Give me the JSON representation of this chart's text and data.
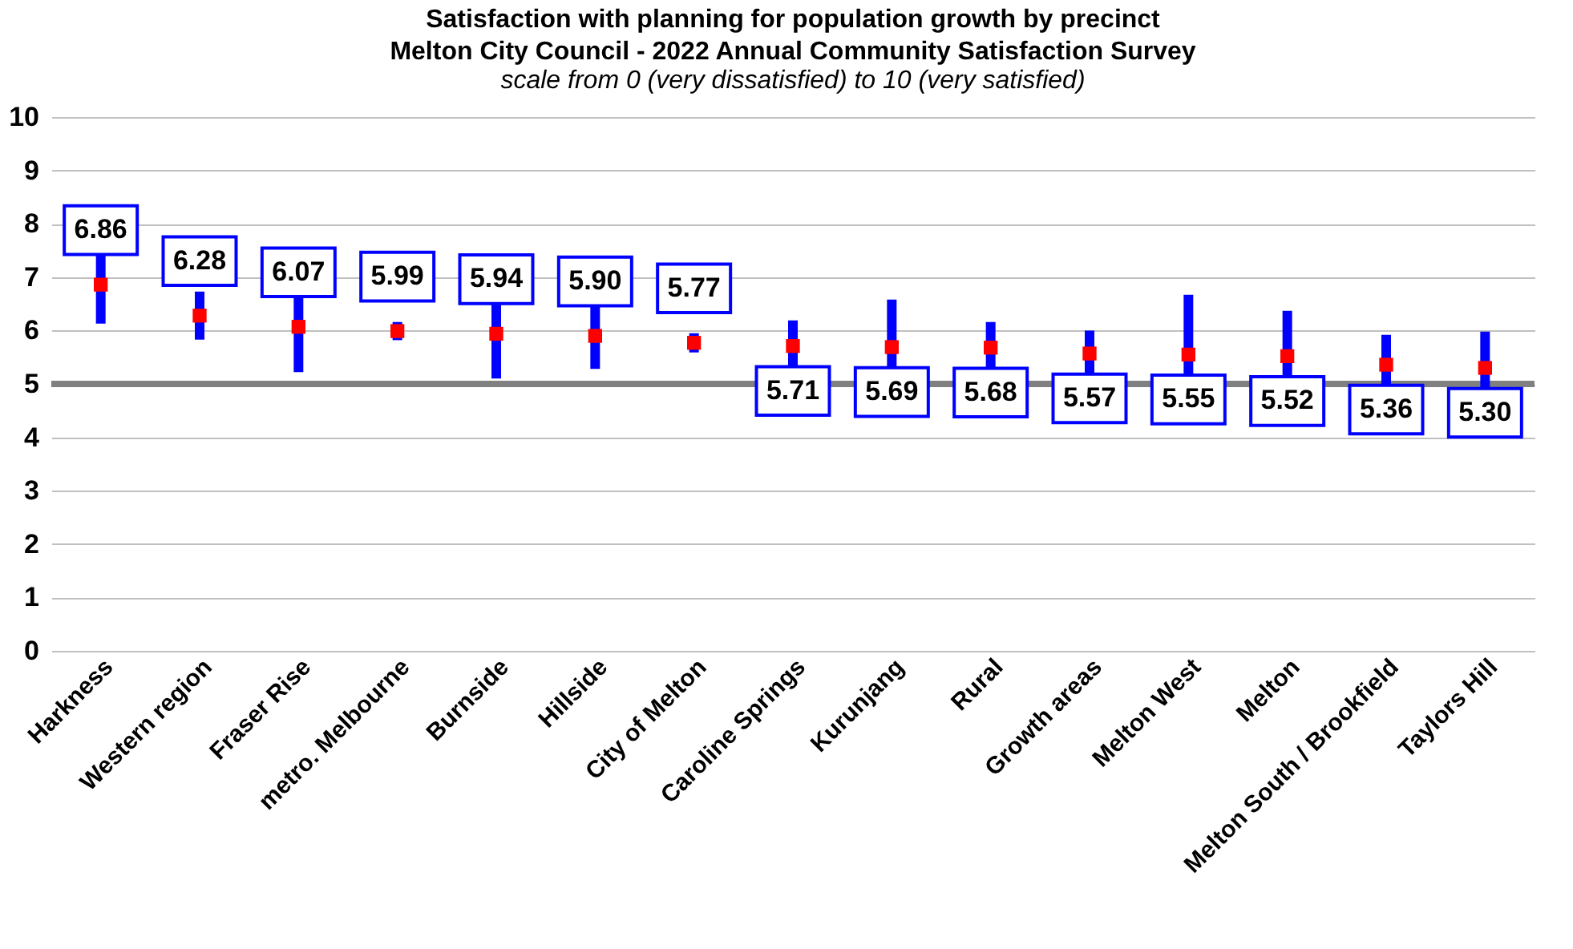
{
  "chart_data": {
    "type": "scatter",
    "title": "Satisfaction with planning for population growth by precinct\nMelton City Council - 2022 Annual Community Satisfaction Survey",
    "subtitle": "scale from 0 (very dissatisfied) to 10 (very satisfied)",
    "categories": [
      "Harkness",
      "Western region",
      "Fraser Rise",
      "metro. Melbourne",
      "Burnside",
      "Hillside",
      "City of Melton",
      "Caroline Springs",
      "Kurunjang",
      "Rural",
      "Growth areas",
      "Melton West",
      "Melton",
      "Melton South / Brookfield",
      "Taylors Hill"
    ],
    "series": [
      {
        "color": "#ff0000",
        "values": [
          6.86,
          6.28,
          6.07,
          5.99,
          5.94,
          5.9,
          5.77,
          5.71,
          5.69,
          5.68,
          5.57,
          5.55,
          5.52,
          5.36,
          5.3
        ],
        "errors": [
          0.73,
          0.45,
          0.85,
          0.17,
          0.84,
          0.62,
          0.18,
          0.48,
          0.89,
          0.48,
          0.43,
          1.12,
          0.85,
          0.56,
          0.68
        ],
        "value_labels": [
          "6.86",
          "6.28",
          "6.07",
          "5.99",
          "5.94",
          "5.90",
          "5.77",
          "5.71",
          "5.69",
          "5.68",
          "5.57",
          "5.55",
          "5.52",
          "5.36",
          "5.30"
        ]
      }
    ],
    "data_labels": true,
    "marker": "square",
    "ylim": [
      0,
      10
    ],
    "yticks": [
      0,
      1,
      2,
      3,
      4,
      5,
      6,
      7,
      8,
      9,
      10
    ],
    "grid": "y",
    "ref_lines": [
      {
        "axis": "y",
        "value": 5,
        "color": "#808080"
      }
    ]
  }
}
